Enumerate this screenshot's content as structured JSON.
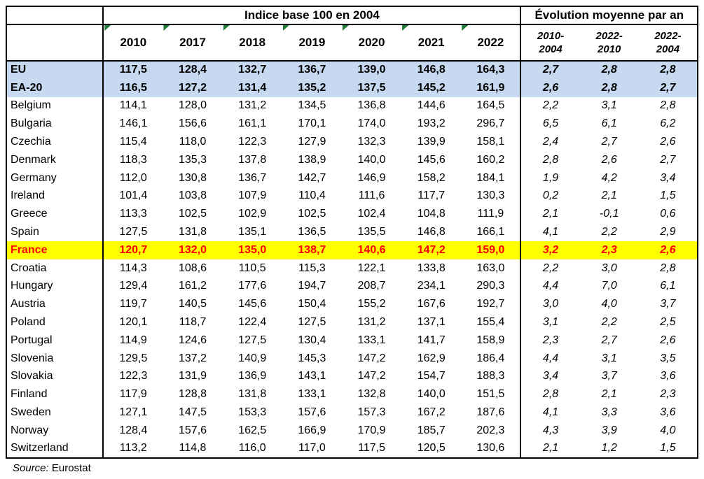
{
  "chart_data": {
    "type": "table",
    "index_title": "Indice base 100 en 2004",
    "evolution_title": "Évolution moyenne par an",
    "year_columns": [
      "2010",
      "2017",
      "2018",
      "2019",
      "2020",
      "2021",
      "2022"
    ],
    "evolution_columns": [
      {
        "line1": "2010-",
        "line2": "2004"
      },
      {
        "line1": "2022-",
        "line2": "2010"
      },
      {
        "line1": "2022-",
        "line2": "2004"
      }
    ],
    "rows": [
      {
        "name": "EU",
        "style": "aggregate",
        "values": [
          "117,5",
          "128,4",
          "132,7",
          "136,7",
          "139,0",
          "146,8",
          "164,3"
        ],
        "evolution": [
          "2,7",
          "2,8",
          "2,8"
        ]
      },
      {
        "name": "EA-20",
        "style": "aggregate",
        "values": [
          "116,5",
          "127,2",
          "131,4",
          "135,2",
          "137,5",
          "145,2",
          "161,9"
        ],
        "evolution": [
          "2,6",
          "2,8",
          "2,7"
        ]
      },
      {
        "name": "Belgium",
        "style": "default",
        "values": [
          "114,1",
          "128,0",
          "131,2",
          "134,5",
          "136,8",
          "144,6",
          "164,5"
        ],
        "evolution": [
          "2,2",
          "3,1",
          "2,8"
        ]
      },
      {
        "name": "Bulgaria",
        "style": "default",
        "values": [
          "146,1",
          "156,6",
          "161,1",
          "170,1",
          "174,0",
          "193,2",
          "296,7"
        ],
        "evolution": [
          "6,5",
          "6,1",
          "6,2"
        ]
      },
      {
        "name": "Czechia",
        "style": "default",
        "values": [
          "115,4",
          "118,0",
          "122,3",
          "127,9",
          "132,3",
          "139,9",
          "158,1"
        ],
        "evolution": [
          "2,4",
          "2,7",
          "2,6"
        ]
      },
      {
        "name": "Denmark",
        "style": "default",
        "values": [
          "118,3",
          "135,3",
          "137,8",
          "138,9",
          "140,0",
          "145,6",
          "160,2"
        ],
        "evolution": [
          "2,8",
          "2,6",
          "2,7"
        ]
      },
      {
        "name": "Germany",
        "style": "default",
        "values": [
          "112,0",
          "130,8",
          "136,7",
          "142,7",
          "146,9",
          "158,2",
          "184,1"
        ],
        "evolution": [
          "1,9",
          "4,2",
          "3,4"
        ]
      },
      {
        "name": "Ireland",
        "style": "default",
        "values": [
          "101,4",
          "103,8",
          "107,9",
          "110,4",
          "111,6",
          "117,7",
          "130,3"
        ],
        "evolution": [
          "0,2",
          "2,1",
          "1,5"
        ]
      },
      {
        "name": "Greece",
        "style": "default",
        "values": [
          "113,3",
          "102,5",
          "102,9",
          "102,5",
          "102,4",
          "104,8",
          "111,9"
        ],
        "evolution": [
          "2,1",
          "-0,1",
          "0,6"
        ]
      },
      {
        "name": "Spain",
        "style": "default",
        "values": [
          "127,5",
          "131,8",
          "135,1",
          "136,5",
          "135,5",
          "146,8",
          "166,1"
        ],
        "evolution": [
          "4,1",
          "2,2",
          "2,9"
        ]
      },
      {
        "name": "France",
        "style": "highlight",
        "values": [
          "120,7",
          "132,0",
          "135,0",
          "138,7",
          "140,6",
          "147,2",
          "159,0"
        ],
        "evolution": [
          "3,2",
          "2,3",
          "2,6"
        ]
      },
      {
        "name": "Croatia",
        "style": "default",
        "values": [
          "114,3",
          "108,6",
          "110,5",
          "115,3",
          "122,1",
          "133,8",
          "163,0"
        ],
        "evolution": [
          "2,2",
          "3,0",
          "2,8"
        ]
      },
      {
        "name": "Hungary",
        "style": "default",
        "values": [
          "129,4",
          "161,2",
          "177,6",
          "194,7",
          "208,7",
          "234,1",
          "290,3"
        ],
        "evolution": [
          "4,4",
          "7,0",
          "6,1"
        ]
      },
      {
        "name": "Austria",
        "style": "default",
        "values": [
          "119,7",
          "140,5",
          "145,6",
          "150,4",
          "155,2",
          "167,6",
          "192,7"
        ],
        "evolution": [
          "3,0",
          "4,0",
          "3,7"
        ]
      },
      {
        "name": "Poland",
        "style": "default",
        "values": [
          "120,1",
          "118,7",
          "122,4",
          "127,5",
          "131,2",
          "137,1",
          "155,4"
        ],
        "evolution": [
          "3,1",
          "2,2",
          "2,5"
        ]
      },
      {
        "name": "Portugal",
        "style": "default",
        "values": [
          "114,9",
          "124,6",
          "127,5",
          "130,4",
          "133,1",
          "141,7",
          "158,9"
        ],
        "evolution": [
          "2,3",
          "2,7",
          "2,6"
        ]
      },
      {
        "name": "Slovenia",
        "style": "default",
        "values": [
          "129,5",
          "137,2",
          "140,9",
          "145,3",
          "147,2",
          "162,9",
          "186,4"
        ],
        "evolution": [
          "4,4",
          "3,1",
          "3,5"
        ]
      },
      {
        "name": "Slovakia",
        "style": "default",
        "values": [
          "122,3",
          "131,9",
          "136,9",
          "143,1",
          "147,2",
          "154,7",
          "188,3"
        ],
        "evolution": [
          "3,4",
          "3,7",
          "3,6"
        ]
      },
      {
        "name": "Finland",
        "style": "default",
        "values": [
          "117,9",
          "128,8",
          "131,8",
          "133,1",
          "132,8",
          "140,0",
          "151,5"
        ],
        "evolution": [
          "2,8",
          "2,1",
          "2,3"
        ]
      },
      {
        "name": "Sweden",
        "style": "default",
        "values": [
          "127,1",
          "147,5",
          "153,3",
          "157,6",
          "157,3",
          "167,2",
          "187,6"
        ],
        "evolution": [
          "4,1",
          "3,3",
          "3,6"
        ]
      },
      {
        "name": "Norway",
        "style": "default",
        "values": [
          "128,4",
          "157,6",
          "162,5",
          "166,9",
          "170,9",
          "185,7",
          "202,3"
        ],
        "evolution": [
          "4,3",
          "3,9",
          "4,0"
        ]
      },
      {
        "name": "Switzerland",
        "style": "default",
        "values": [
          "113,2",
          "114,8",
          "116,0",
          "117,0",
          "117,5",
          "120,5",
          "130,6"
        ],
        "evolution": [
          "2,1",
          "1,2",
          "1,5"
        ]
      }
    ]
  },
  "source": {
    "label": "Source:",
    "value": "Eurostat"
  },
  "colors": {
    "aggregate_row_bg": "#C6D9F1",
    "highlight_row_bg": "#FFFF00",
    "highlight_text": "#FF0000",
    "cell_note_triangle": "#1E7B34",
    "border": "#000000"
  }
}
